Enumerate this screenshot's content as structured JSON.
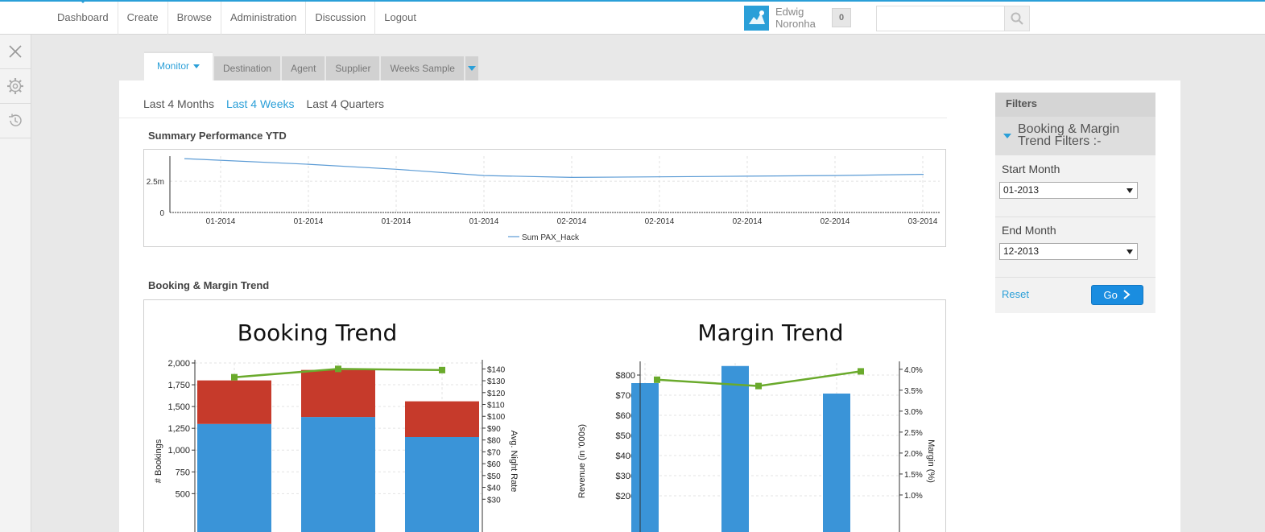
{
  "nav": {
    "items": [
      "Dashboard",
      "Create",
      "Browse",
      "Administration",
      "Discussion",
      "Logout"
    ]
  },
  "user": {
    "first_name": "Edwig",
    "last_name": "Noronha",
    "notifications": "0"
  },
  "search": {
    "placeholder": ""
  },
  "tabs": {
    "items": [
      "Monitor",
      "Destination",
      "Agent",
      "Supplier",
      "Weeks Sample"
    ]
  },
  "periods": {
    "items": [
      "Last 4 Months",
      "Last 4 Weeks",
      "Last 4 Quarters"
    ],
    "active": "Last 4 Weeks"
  },
  "sections": {
    "summary_title": "Summary Performance YTD",
    "booking_title": "Booking & Margin Trend"
  },
  "filters": {
    "header": "Filters",
    "group_title": "Booking & Margin Trend Filters :-",
    "start_label": "Start Month",
    "start_value": "01-2013",
    "end_label": "End Month",
    "end_value": "12-2013",
    "reset_label": "Reset",
    "go_label": "Go"
  },
  "colors": {
    "accent": "#2a9fd8",
    "bar_blue": "#3a94d8",
    "bar_red": "#c63a2b",
    "line_green": "#6aaa2c"
  },
  "chart_data": [
    {
      "type": "line",
      "title": "Summary Performance YTD",
      "x": [
        "01-2014",
        "01-2014",
        "01-2014",
        "01-2014",
        "02-2014",
        "02-2014",
        "02-2014",
        "02-2014",
        "03-2014"
      ],
      "yticks": [
        "0",
        "2.5m"
      ],
      "series": [
        {
          "name": "Sum PAX_Hack",
          "values": [
            4.3,
            3.85,
            3.45,
            2.95,
            2.8,
            2.85,
            2.9,
            2.95,
            3.05
          ]
        }
      ],
      "ylim": [
        0,
        4.5
      ]
    },
    {
      "type": "bar",
      "title": "Booking Trend",
      "ylabel": "# Bookings",
      "y2label": "Avg. Night Rate",
      "yticks": [
        "500",
        "750",
        "1,000",
        "1,250",
        "1,500",
        "1,750",
        "2,000"
      ],
      "y2ticks": [
        "$30",
        "$40",
        "$50",
        "$60",
        "$70",
        "$80",
        "$90",
        "$100",
        "$110",
        "$120",
        "$130",
        "$140"
      ],
      "ylim": [
        300,
        2000
      ],
      "y2lim": [
        20,
        145
      ],
      "stacked": true,
      "series": [
        {
          "values": [
            1300,
            1380,
            1150
          ]
        },
        {
          "values": [
            500,
            540,
            410
          ]
        }
      ],
      "line": {
        "values": [
          133,
          140,
          139
        ]
      }
    },
    {
      "type": "bar",
      "title": "Margin Trend",
      "ylabel": "Revenue (in '000s)",
      "y2label": "Margin (%)",
      "yticks": [
        "$200",
        "$300",
        "$400",
        "$500",
        "$600",
        "$700",
        "$800"
      ],
      "y2ticks": [
        "1.0%",
        "1.5%",
        "2.0%",
        "2.5%",
        "3.0%",
        "3.5%",
        "4.0%"
      ],
      "ylim": [
        100,
        860
      ],
      "y2lim": [
        0.5,
        4.15
      ],
      "series": [
        {
          "values": [
            760,
            845,
            708
          ]
        }
      ],
      "line": {
        "values": [
          3.75,
          3.6,
          3.95
        ]
      }
    }
  ]
}
